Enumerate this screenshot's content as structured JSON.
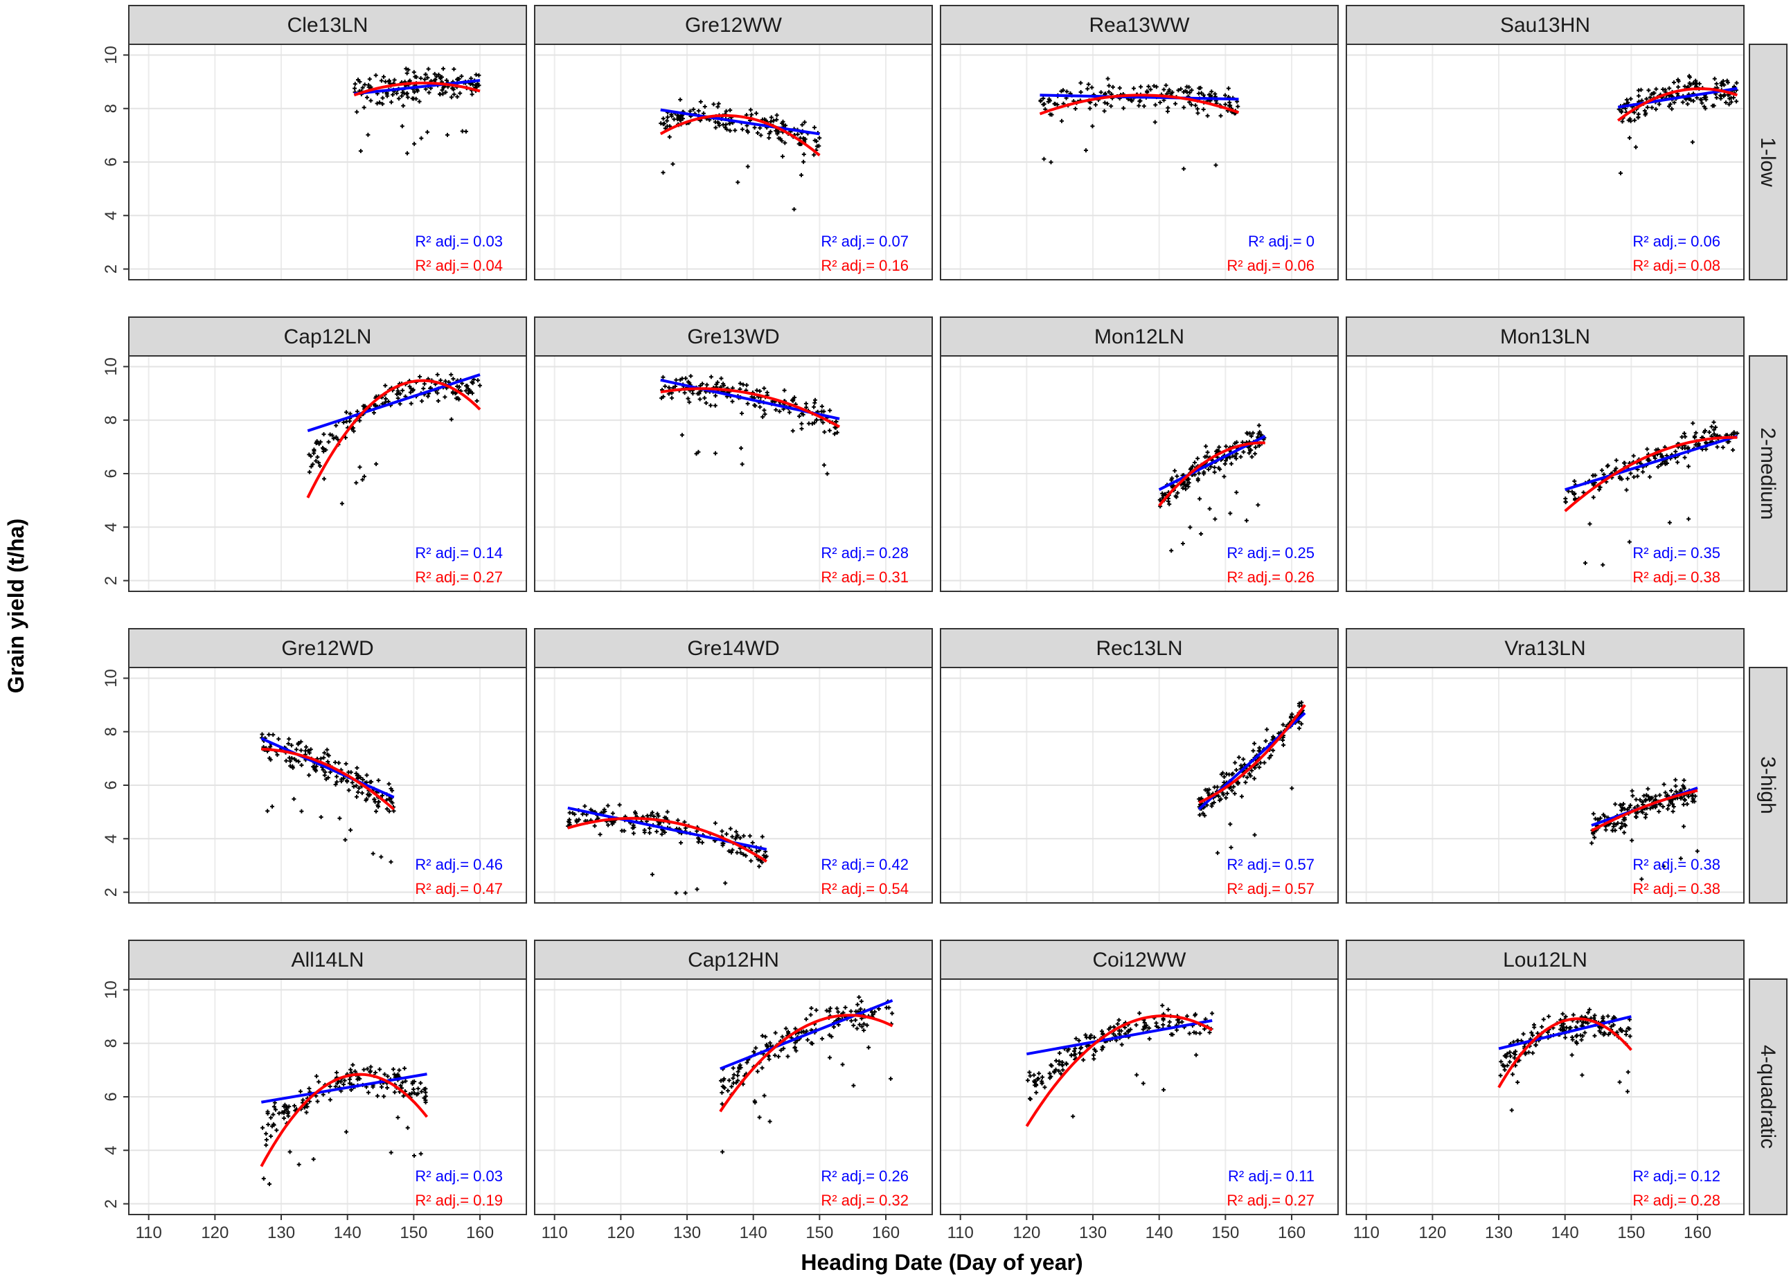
{
  "chart_data": {
    "type": "scatter",
    "title": "",
    "xlabel": "Heading Date (Day of year)",
    "ylabel": "Grain yield (t/ha)",
    "xlim": [
      107,
      167
    ],
    "ylim": [
      1.6,
      10.4
    ],
    "x_ticks": [
      110,
      120,
      130,
      140,
      150,
      160
    ],
    "x_tick_labels": [
      "110",
      "120",
      "130",
      "140",
      "150",
      "160"
    ],
    "y_ticks": [
      2,
      4,
      6,
      8,
      10
    ],
    "y_tick_labels": [
      "2",
      "4",
      "6",
      "8",
      "10"
    ],
    "grid": true,
    "series_colors": {
      "linear": "#0000ff",
      "quadratic": "#ff0000",
      "points": "#000000"
    },
    "r2_prefix": "R² adj.= ",
    "row_labels": [
      "1-low",
      "2-medium",
      "3-high",
      "4-quadratic"
    ],
    "panels": [
      {
        "row": 0,
        "col": 0,
        "label": "Cle13LN",
        "x_range": [
          141,
          160
        ],
        "lin": [
          8.55,
          9.05
        ],
        "quad": [
          8.5,
          8.95,
          8.65
        ],
        "r2_lin": "0.03",
        "r2_quad": "0.04"
      },
      {
        "row": 0,
        "col": 1,
        "label": "Gre12WW",
        "x_range": [
          126,
          150
        ],
        "lin": [
          7.95,
          7.05
        ],
        "quad": [
          7.05,
          7.7,
          6.25
        ],
        "r2_lin": "0.07",
        "r2_quad": "0.16"
      },
      {
        "row": 0,
        "col": 2,
        "label": "Rea13WW",
        "x_range": [
          122,
          152
        ],
        "lin": [
          8.5,
          8.35
        ],
        "quad": [
          7.8,
          8.5,
          7.85
        ],
        "r2_lin": "0",
        "r2_quad": "0.06"
      },
      {
        "row": 0,
        "col": 3,
        "label": "Sau13HN",
        "x_range": [
          148,
          166
        ],
        "lin": [
          8.05,
          8.75
        ],
        "quad": [
          7.55,
          8.65,
          8.5
        ],
        "r2_lin": "0.06",
        "r2_quad": "0.08"
      },
      {
        "row": 1,
        "col": 0,
        "label": "Cap12LN",
        "x_range": [
          134,
          160
        ],
        "lin": [
          7.6,
          9.7
        ],
        "quad": [
          5.1,
          9.2,
          8.4
        ],
        "r2_lin": "0.14",
        "r2_quad": "0.27"
      },
      {
        "row": 1,
        "col": 1,
        "label": "Gre13WD",
        "x_range": [
          126,
          153
        ],
        "lin": [
          9.5,
          8.05
        ],
        "quad": [
          9.05,
          9.0,
          7.75
        ],
        "r2_lin": "0.28",
        "r2_quad": "0.31"
      },
      {
        "row": 1,
        "col": 2,
        "label": "Mon12LN",
        "x_range": [
          140,
          156
        ],
        "lin": [
          5.4,
          7.4
        ],
        "quad": [
          4.8,
          6.6,
          7.15
        ],
        "r2_lin": "0.25",
        "r2_quad": "0.26"
      },
      {
        "row": 1,
        "col": 3,
        "label": "Mon13LN",
        "x_range": [
          140,
          166
        ],
        "lin": [
          5.4,
          7.4
        ],
        "quad": [
          4.6,
          6.7,
          7.35
        ],
        "r2_lin": "0.35",
        "r2_quad": "0.38"
      },
      {
        "row": 2,
        "col": 0,
        "label": "Gre12WD",
        "x_range": [
          127,
          147
        ],
        "lin": [
          7.75,
          5.55
        ],
        "quad": [
          7.35,
          6.75,
          5.1
        ],
        "r2_lin": "0.46",
        "r2_quad": "0.47"
      },
      {
        "row": 2,
        "col": 1,
        "label": "Gre14WD",
        "x_range": [
          112,
          142
        ],
        "lin": [
          5.15,
          3.6
        ],
        "quad": [
          4.4,
          4.65,
          3.15
        ],
        "r2_lin": "0.42",
        "r2_quad": "0.54"
      },
      {
        "row": 2,
        "col": 2,
        "label": "Rec13LN",
        "x_range": [
          146,
          162
        ],
        "lin": [
          5.1,
          8.7
        ],
        "quad": [
          5.35,
          6.7,
          9.0
        ],
        "r2_lin": "0.57",
        "r2_quad": "0.57"
      },
      {
        "row": 2,
        "col": 3,
        "label": "Vra13LN",
        "x_range": [
          144,
          160
        ],
        "lin": [
          4.5,
          5.9
        ],
        "quad": [
          4.3,
          5.2,
          5.8
        ],
        "r2_lin": "0.38",
        "r2_quad": "0.38"
      },
      {
        "row": 3,
        "col": 0,
        "label": "All14LN",
        "x_range": [
          127,
          152
        ],
        "lin": [
          5.8,
          6.85
        ],
        "quad": [
          3.4,
          6.75,
          5.25
        ],
        "r2_lin": "0.03",
        "r2_quad": "0.19"
      },
      {
        "row": 3,
        "col": 1,
        "label": "Cap12HN",
        "x_range": [
          135,
          161
        ],
        "lin": [
          7.05,
          9.6
        ],
        "quad": [
          5.45,
          8.65,
          8.65
        ],
        "r2_lin": "0.26",
        "r2_quad": "0.32"
      },
      {
        "row": 3,
        "col": 2,
        "label": "Coi12WW",
        "x_range": [
          120,
          148
        ],
        "lin": [
          7.6,
          8.85
        ],
        "quad": [
          4.9,
          8.6,
          8.5
        ],
        "r2_lin": "0.11",
        "r2_quad": "0.27"
      },
      {
        "row": 3,
        "col": 3,
        "label": "Lou12LN",
        "x_range": [
          130,
          150
        ],
        "lin": [
          7.8,
          9.0
        ],
        "quad": [
          6.35,
          8.85,
          7.75
        ],
        "r2_lin": "0.12",
        "r2_quad": "0.28"
      }
    ]
  }
}
